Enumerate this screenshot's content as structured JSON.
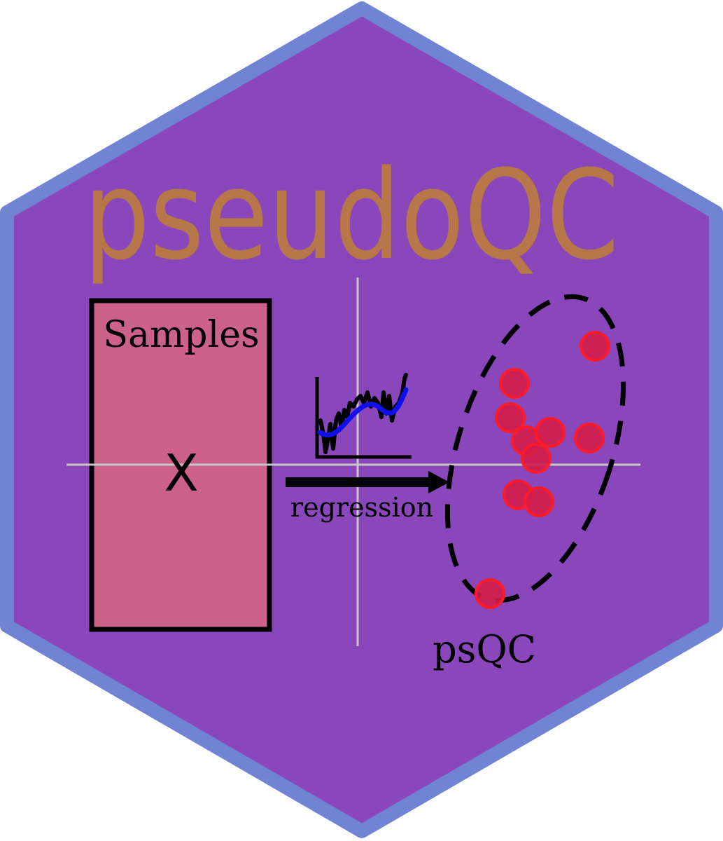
{
  "logo": {
    "title": "pseudoQC",
    "samples_label": "Samples",
    "matrix_label": "X",
    "arrow_label": "regression",
    "cluster_label": "psQC"
  },
  "colors": {
    "hex_border": "#7184d3",
    "hex_fill": "#8a47bb",
    "title": "#b87748",
    "samples_box": "#cc6189",
    "points": "#d41c4a",
    "point_stroke": "#ff1a2a",
    "curve": "#1010ee",
    "axes_cross": "#c8c8c8"
  }
}
